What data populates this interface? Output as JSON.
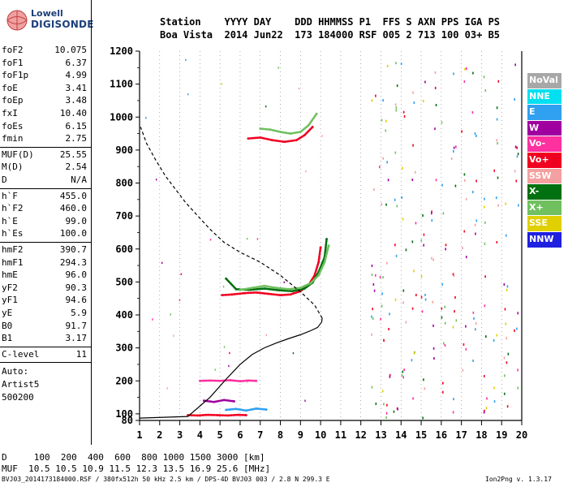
{
  "logo": {
    "line1": "Lowell",
    "line2": "DIGISONDE"
  },
  "header": {
    "line1": "Station    YYYY DAY    DDD HHMMSS P1  FFS S AXN PPS IGA PS",
    "line2": "Boa Vista  2014 Jun22  173 184000 RSF 005 2 713 100 03+ B5"
  },
  "params_group1": [
    {
      "name": "foF2",
      "value": "10.075"
    },
    {
      "name": "foF1",
      "value": "6.37"
    },
    {
      "name": "foF1p",
      "value": "4.99"
    },
    {
      "name": "foE",
      "value": "3.41"
    },
    {
      "name": "foEp",
      "value": "3.48"
    },
    {
      "name": "fxI",
      "value": "10.40"
    },
    {
      "name": "foEs",
      "value": "6.15"
    },
    {
      "name": "fmin",
      "value": "2.75"
    }
  ],
  "params_group2": [
    {
      "name": "MUF(D)",
      "value": "25.55"
    },
    {
      "name": "M(D)",
      "value": "2.54"
    },
    {
      "name": "D",
      "value": "N/A"
    }
  ],
  "params_group3": [
    {
      "name": "h`F",
      "value": "455.0"
    },
    {
      "name": "h`F2",
      "value": "460.0"
    },
    {
      "name": "h`E",
      "value": "99.0"
    },
    {
      "name": "h`Es",
      "value": "100.0"
    }
  ],
  "params_group4": [
    {
      "name": "hmF2",
      "value": "390.7"
    },
    {
      "name": "hmF1",
      "value": "294.3"
    },
    {
      "name": "hmE",
      "value": "96.0"
    },
    {
      "name": "yF2",
      "value": "90.3"
    },
    {
      "name": "yF1",
      "value": "94.6"
    },
    {
      "name": "yE",
      "value": "5.9"
    },
    {
      "name": "B0",
      "value": "91.7"
    },
    {
      "name": "B1",
      "value": "3.17"
    }
  ],
  "params_group5": [
    {
      "name": "C-level",
      "value": "11"
    }
  ],
  "auto": {
    "line1": "Auto:",
    "line2": "Artist5",
    "line3": "500200"
  },
  "legend": [
    {
      "label": "NoVal",
      "color": "#a8a8a8"
    },
    {
      "label": "NNE",
      "color": "#00e0f0"
    },
    {
      "label": "E",
      "color": "#30a0f0"
    },
    {
      "label": "W",
      "color": "#a000a0"
    },
    {
      "label": "Vo-",
      "color": "#ff30a0"
    },
    {
      "label": "Vo+",
      "color": "#f00020"
    },
    {
      "label": "SSW",
      "color": "#f4a0a0"
    },
    {
      "label": "X-",
      "color": "#007010"
    },
    {
      "label": "X+",
      "color": "#70c060"
    },
    {
      "label": "SSE",
      "color": "#e0d000"
    },
    {
      "label": "NNW",
      "color": "#2020e0"
    }
  ],
  "bottom": {
    "dline": "D     100  200  400  600  800 1000 1500 3000 [km]",
    "mufline": "MUF  10.5 10.5 10.9 11.5 12.3 13.5 16.9 25.6 [MHz]"
  },
  "footer": {
    "left": "BVJ03_2014173184000.RSF / 380fx512h 50 kHz 2.5 km / DPS-4D BVJ03 003 / 2.8 N 299.3 E",
    "right": "Ion2Png v. 1.3.17"
  },
  "chart_data": {
    "type": "scatter",
    "xlim": [
      1,
      20
    ],
    "ylim": [
      80,
      1200
    ],
    "xticks": [
      1,
      2,
      3,
      4,
      5,
      6,
      7,
      8,
      9,
      10,
      11,
      12,
      13,
      14,
      15,
      16,
      17,
      18,
      19,
      20
    ],
    "yticks": [
      80,
      100,
      200,
      300,
      400,
      500,
      600,
      700,
      800,
      900,
      1000,
      1100,
      1200
    ],
    "grid": "dotted-vertical",
    "profile_solid": {
      "x": [
        1.0,
        3.4,
        4.5,
        5.3,
        6.0,
        6.6,
        7.2,
        7.8,
        8.4,
        9.0,
        9.5,
        9.85,
        10.05,
        10.08
      ],
      "y": [
        87,
        92,
        150,
        205,
        250,
        280,
        300,
        315,
        328,
        340,
        352,
        362,
        378,
        390
      ]
    },
    "profile_dashed": {
      "x": [
        10.08,
        9.7,
        9.0,
        8.0,
        7.0,
        6.0,
        5.2,
        4.5,
        3.9,
        3.3,
        2.8,
        2.3,
        1.8,
        1.35,
        1.05
      ],
      "y": [
        390,
        430,
        470,
        520,
        560,
        590,
        620,
        660,
        700,
        740,
        780,
        820,
        870,
        920,
        970
      ]
    },
    "traces": [
      {
        "name": "Vo+",
        "color": "#f00020",
        "x": [
          5.1,
          5.6,
          6.2,
          6.8,
          7.4,
          8.0,
          8.5,
          9.0,
          9.4,
          9.7,
          9.9,
          10.0
        ],
        "y": [
          460,
          462,
          466,
          468,
          464,
          460,
          462,
          472,
          490,
          520,
          560,
          605
        ]
      },
      {
        "name": "X-",
        "color": "#007010",
        "x": [
          5.3,
          5.8,
          6.5,
          7.2,
          7.9,
          8.6,
          9.2,
          9.6,
          9.9,
          10.2,
          10.3
        ],
        "y": [
          510,
          478,
          476,
          480,
          475,
          472,
          480,
          498,
          530,
          575,
          630
        ]
      },
      {
        "name": "X+",
        "color": "#70c060",
        "x": [
          6.0,
          6.6,
          7.2,
          7.8,
          8.4,
          9.0,
          9.5,
          9.9,
          10.2,
          10.4
        ],
        "y": [
          476,
          482,
          488,
          482,
          478,
          482,
          496,
          520,
          560,
          610
        ]
      },
      {
        "name": "Vo+",
        "color": "#f00020",
        "x": [
          6.4,
          7.0,
          7.6,
          8.2,
          8.8,
          9.2,
          9.6
        ],
        "y": [
          935,
          938,
          930,
          925,
          930,
          945,
          970
        ]
      },
      {
        "name": "X+",
        "color": "#70c060",
        "x": [
          7.0,
          7.5,
          8.0,
          8.5,
          9.0,
          9.4,
          9.8
        ],
        "y": [
          965,
          962,
          955,
          950,
          955,
          975,
          1010
        ]
      },
      {
        "name": "Vo-",
        "color": "#ff30a0",
        "x": [
          4.0,
          4.5,
          5.0,
          5.5,
          6.0,
          6.4,
          6.8
        ],
        "y": [
          200,
          201,
          200,
          202,
          199,
          201,
          200
        ]
      },
      {
        "name": "Vo+",
        "color": "#f00020",
        "x": [
          3.4,
          3.9,
          4.4,
          4.9,
          5.4,
          5.9,
          6.3
        ],
        "y": [
          96,
          95,
          97,
          96,
          95,
          97,
          96
        ]
      },
      {
        "name": "E",
        "color": "#30a0f0",
        "x": [
          5.3,
          5.8,
          6.3,
          6.8,
          7.3
        ],
        "y": [
          112,
          115,
          110,
          116,
          113
        ]
      },
      {
        "name": "W",
        "color": "#a000a0",
        "x": [
          4.2,
          4.7,
          5.2,
          5.7
        ],
        "y": [
          140,
          136,
          142,
          138
        ]
      }
    ]
  }
}
